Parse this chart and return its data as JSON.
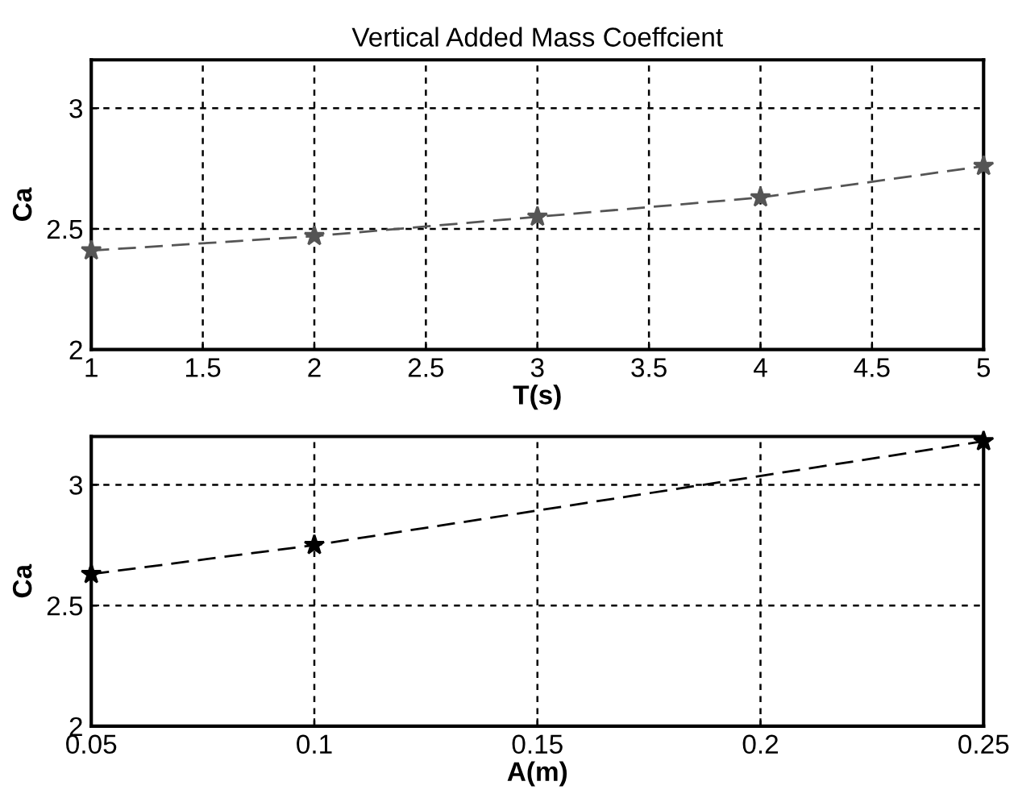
{
  "chart_data": [
    {
      "type": "line",
      "title": "Vertical Added Mass Coeffcient",
      "xlabel": "T(s)",
      "ylabel": "Ca",
      "x": [
        1,
        2,
        3,
        4,
        5
      ],
      "series": [
        {
          "color": "#555555",
          "values": [
            2.41,
            2.47,
            2.55,
            2.63,
            2.76
          ]
        }
      ],
      "xlim": [
        1,
        5
      ],
      "xticks": [
        1,
        1.5,
        2,
        2.5,
        3,
        3.5,
        4,
        4.5,
        5
      ],
      "ylim": [
        2,
        3.2
      ],
      "yticks": [
        2,
        2.5,
        3
      ],
      "grid": true,
      "marker": "star",
      "line_style": "dashed"
    },
    {
      "type": "line",
      "xlabel": "A(m)",
      "ylabel": "Ca",
      "x": [
        0.05,
        0.1,
        0.25
      ],
      "series": [
        {
          "color": "#000000",
          "values": [
            2.63,
            2.75,
            3.18
          ]
        }
      ],
      "xlim": [
        0.05,
        0.25
      ],
      "xticks": [
        0.05,
        0.1,
        0.15,
        0.2,
        0.25
      ],
      "ylim": [
        2,
        3.2
      ],
      "yticks": [
        2,
        2.5,
        3
      ],
      "grid": true,
      "marker": "star",
      "line_style": "dashed"
    }
  ]
}
